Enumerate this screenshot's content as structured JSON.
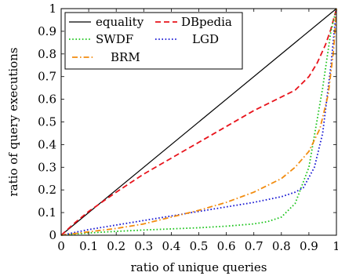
{
  "chart_data": {
    "type": "line",
    "xlabel": "ratio of unique queries",
    "ylabel": "ratio of query executions",
    "xlim": [
      0,
      1
    ],
    "ylim": [
      0,
      1
    ],
    "grid": false,
    "legend_position": "top-left",
    "x_ticks": [
      "0",
      "0.1",
      "0.2",
      "0.3",
      "0.4",
      "0.5",
      "0.6",
      "0.7",
      "0.8",
      "0.9",
      "1"
    ],
    "y_ticks": [
      "0",
      "0.1",
      "0.2",
      "0.3",
      "0.4",
      "0.5",
      "0.6",
      "0.7",
      "0.8",
      "0.9",
      "1"
    ],
    "series": [
      {
        "name": "equality",
        "color": "#000000",
        "dash": "solid",
        "x": [
          0,
          1
        ],
        "y": [
          0,
          1
        ]
      },
      {
        "name": "DBpedia",
        "color": "#e8131b",
        "dash": "dashed",
        "x": [
          0,
          0.05,
          0.1,
          0.2,
          0.3,
          0.4,
          0.5,
          0.6,
          0.7,
          0.8,
          0.85,
          0.9,
          0.93,
          0.96,
          0.98,
          1.0
        ],
        "y": [
          0,
          0.055,
          0.105,
          0.19,
          0.27,
          0.34,
          0.41,
          0.48,
          0.55,
          0.61,
          0.64,
          0.7,
          0.76,
          0.84,
          0.91,
          1.0
        ]
      },
      {
        "name": "SWDF",
        "color": "#19c319",
        "dash": "dotted",
        "x": [
          0,
          0.1,
          0.2,
          0.3,
          0.4,
          0.5,
          0.6,
          0.7,
          0.75,
          0.8,
          0.85,
          0.9,
          0.95,
          0.98,
          1.0
        ],
        "y": [
          0,
          0.01,
          0.017,
          0.023,
          0.028,
          0.033,
          0.04,
          0.05,
          0.06,
          0.08,
          0.14,
          0.3,
          0.65,
          0.9,
          1.0
        ]
      },
      {
        "name": "LGD",
        "color": "#1313d2",
        "dash": "dotted",
        "x": [
          0,
          0.1,
          0.2,
          0.3,
          0.4,
          0.5,
          0.6,
          0.7,
          0.8,
          0.85,
          0.88,
          0.92,
          0.95,
          0.98,
          1.0
        ],
        "y": [
          0,
          0.025,
          0.045,
          0.065,
          0.085,
          0.105,
          0.125,
          0.145,
          0.17,
          0.19,
          0.21,
          0.3,
          0.45,
          0.75,
          1.0
        ]
      },
      {
        "name": "BRM",
        "color": "#f28c0f",
        "dash": "dashdot",
        "x": [
          0,
          0.1,
          0.2,
          0.3,
          0.4,
          0.5,
          0.6,
          0.7,
          0.8,
          0.85,
          0.9,
          0.94,
          0.97,
          0.99,
          1.0
        ],
        "y": [
          0,
          0.015,
          0.03,
          0.05,
          0.08,
          0.11,
          0.145,
          0.19,
          0.25,
          0.3,
          0.37,
          0.47,
          0.62,
          0.82,
          1.0
        ]
      }
    ]
  }
}
